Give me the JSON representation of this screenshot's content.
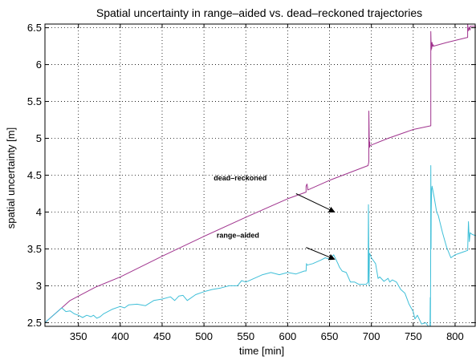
{
  "chart_data": {
    "type": "line",
    "title": "Spatial uncertainty in range–aided vs. dead–reckoned trajectories",
    "xlabel": "time [min]",
    "ylabel": "spatial uncertainty [m]",
    "xlim": [
      310,
      825
    ],
    "ylim": [
      2.45,
      6.55
    ],
    "xticks": [
      350,
      400,
      450,
      500,
      550,
      600,
      650,
      700,
      750,
      800
    ],
    "yticks": [
      2.5,
      3,
      3.5,
      4,
      4.5,
      5,
      5.5,
      6,
      6.5
    ],
    "xtick_labels": [
      "350",
      "400",
      "450",
      "500",
      "550",
      "600",
      "650",
      "700",
      "750",
      "800"
    ],
    "ytick_labels": [
      "2.5",
      "3",
      "3.5",
      "4",
      "4.5",
      "5",
      "5.5",
      "6",
      "6.5"
    ],
    "grid": true,
    "colors": {
      "dead_reckoned": "#a0348e",
      "range_aided": "#3fbfd8"
    },
    "series": [
      {
        "id": "dead_reckoned",
        "x": [
          310,
          340,
          370,
          400,
          450,
          500,
          550,
          600,
          622,
          622,
          623,
          624,
          624,
          650,
          696,
          697,
          697,
          697.5,
          698,
          698,
          698,
          720,
          750,
          771,
          771,
          771.5,
          772,
          772.2,
          772.5,
          773,
          774,
          774,
          790,
          815,
          815,
          816,
          817,
          818,
          818,
          825
        ],
        "y": [
          2.5,
          2.8,
          2.98,
          3.12,
          3.4,
          3.67,
          3.93,
          4.18,
          4.27,
          4.35,
          4.38,
          4.32,
          4.3,
          4.43,
          4.63,
          4.68,
          5.37,
          4.9,
          4.88,
          4.95,
          4.9,
          5.0,
          5.12,
          5.17,
          6.45,
          6.2,
          6.3,
          6.22,
          6.3,
          6.25,
          6.27,
          6.25,
          6.3,
          6.37,
          6.55,
          6.46,
          6.5,
          6.47,
          6.52,
          6.52
        ]
      },
      {
        "id": "range_aided",
        "x": [
          310,
          320,
          330,
          335,
          340,
          345,
          350,
          355,
          360,
          365,
          368,
          372,
          376,
          380,
          390,
          400,
          405,
          410,
          420,
          430,
          440,
          450,
          460,
          465,
          470,
          475,
          480,
          490,
          500,
          510,
          520,
          530,
          540,
          545,
          550,
          560,
          570,
          580,
          590,
          600,
          610,
          620,
          622,
          622.5,
          623,
          630,
          640,
          645,
          650,
          655,
          660,
          662,
          665,
          670,
          675,
          680,
          685,
          690,
          694,
          696,
          696.5,
          697,
          697.3,
          697.6,
          698,
          700,
          705,
          708,
          710,
          715,
          720,
          722,
          725,
          730,
          735,
          740,
          745,
          750,
          752,
          755,
          760,
          765,
          768,
          770,
          770.3,
          770.5,
          770.8,
          771,
          771.3,
          771.5,
          772,
          772.5,
          775,
          778,
          780,
          785,
          790,
          795,
          800,
          805,
          810,
          815,
          816,
          817,
          818,
          820,
          822,
          825
        ],
        "y": [
          2.5,
          2.6,
          2.7,
          2.65,
          2.66,
          2.62,
          2.6,
          2.57,
          2.6,
          2.58,
          2.6,
          2.56,
          2.58,
          2.62,
          2.68,
          2.72,
          2.7,
          2.74,
          2.75,
          2.73,
          2.8,
          2.82,
          2.85,
          2.8,
          2.86,
          2.87,
          2.8,
          2.88,
          2.92,
          2.95,
          2.97,
          3.0,
          3.0,
          3.07,
          3.05,
          3.1,
          3.15,
          3.18,
          3.15,
          3.18,
          3.16,
          3.2,
          3.2,
          3.3,
          3.28,
          3.3,
          3.35,
          3.38,
          3.36,
          3.42,
          3.3,
          3.25,
          3.2,
          3.18,
          3.05,
          3.05,
          3.02,
          3.02,
          3.02,
          3.05,
          4.1,
          3.3,
          3.0,
          3.42,
          3.44,
          3.38,
          3.3,
          3.1,
          3.12,
          3.06,
          3.1,
          3.05,
          3.08,
          3.05,
          2.95,
          2.9,
          2.75,
          2.65,
          2.55,
          2.6,
          2.48,
          2.5,
          2.45,
          2.45,
          2.84,
          2.45,
          3.2,
          4.63,
          3.5,
          4.0,
          4.3,
          4.35,
          4.2,
          4.0,
          3.95,
          3.72,
          3.52,
          3.38,
          3.42,
          3.44,
          3.46,
          3.48,
          3.87,
          3.6,
          3.72,
          3.7,
          3.69,
          3.68
        ]
      }
    ],
    "annotations": [
      {
        "id": "dead_reckoned",
        "text": "dead–reckoned",
        "label_at": [
          575,
          4.43
        ],
        "arrow_from": [
          610,
          4.25
        ],
        "arrow_to": [
          656,
          4.0
        ]
      },
      {
        "id": "range_aided",
        "text": "range–aided",
        "label_at": [
          566,
          3.65
        ],
        "arrow_from": [
          622,
          3.52
        ],
        "arrow_to": [
          656,
          3.36
        ]
      }
    ]
  }
}
